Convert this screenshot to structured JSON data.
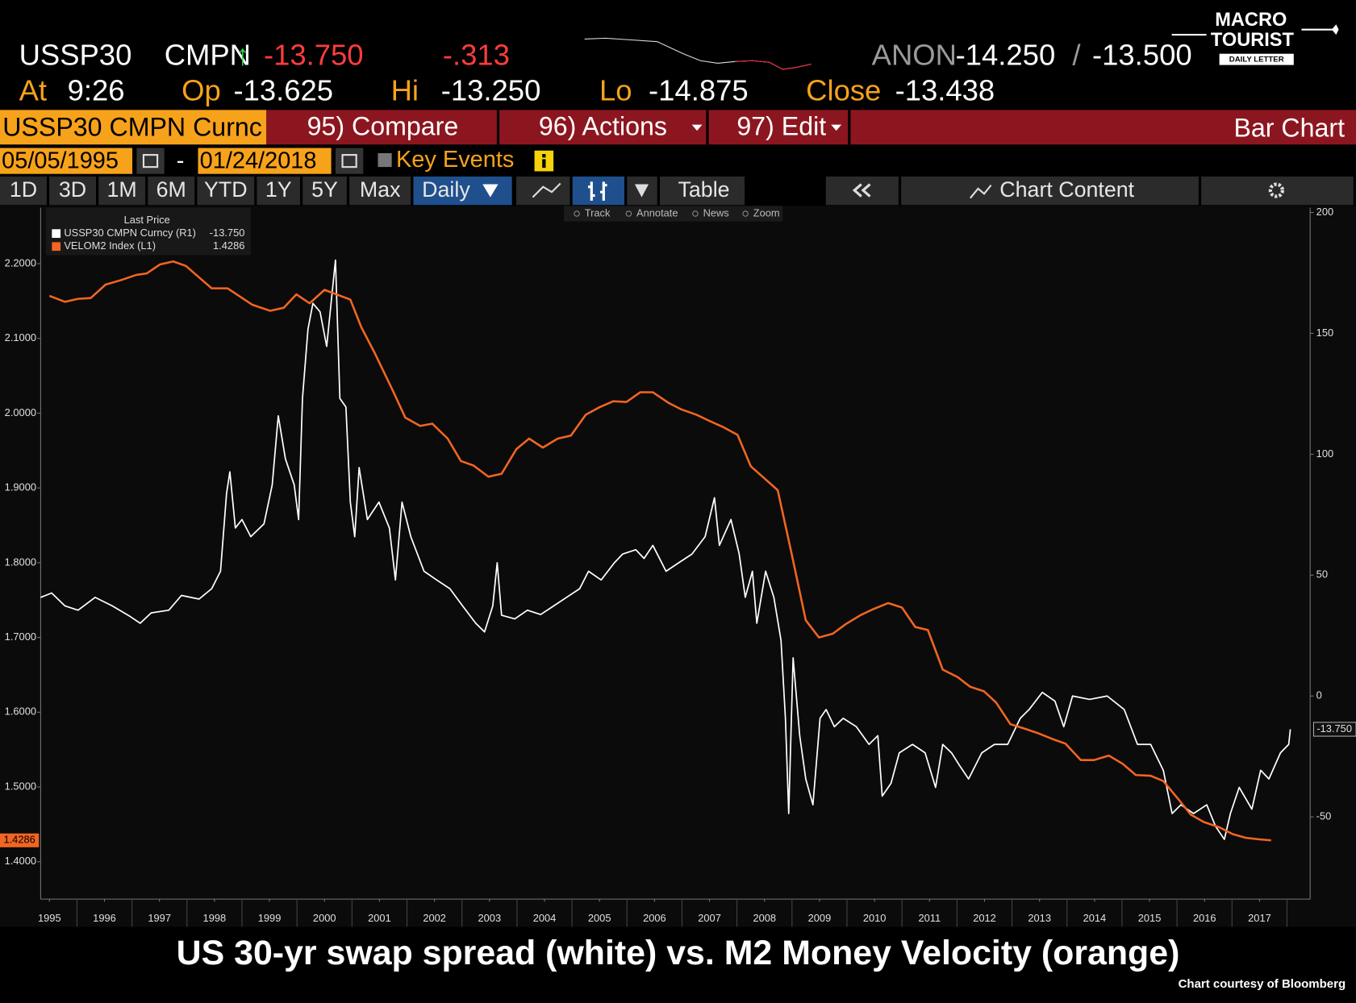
{
  "header": {
    "ticker": "USSP30",
    "source": "CMPN",
    "arrow": "↑",
    "last": "-13.750",
    "change": "-.313",
    "quote_source": "ANON",
    "bid": "-14.250",
    "sep": "/",
    "ask": "-13.500",
    "time_label": "At",
    "time": "9:26",
    "open_label": "Op",
    "open": "-13.625",
    "high_label": "Hi",
    "high": "-13.250",
    "low_label": "Lo",
    "low": "-14.875",
    "close_label": "Close",
    "close": "-13.438"
  },
  "logo": {
    "line1": "MACRO",
    "line2": "TOURIST",
    "line3": "DAILY LETTER"
  },
  "toolbar": {
    "security": "USSP30 CMPN Curnc",
    "compare": "95) Compare",
    "actions": "96) Actions",
    "edit": "97) Edit",
    "chart_type": "Bar Chart",
    "start_date": "05/05/1995",
    "date_sep": "-",
    "end_date": "01/24/2018",
    "key_events": "Key Events",
    "periods": [
      "1D",
      "3D",
      "1M",
      "6M",
      "YTD",
      "1Y",
      "5Y",
      "Max"
    ],
    "frequency": "Daily",
    "table": "Table",
    "chart_content": "Chart Content",
    "tools": [
      "Track",
      "Annotate",
      "News",
      "Zoom"
    ]
  },
  "chart_data": {
    "type": "line",
    "title": "US 30-yr swap spread (white) vs. M2 Money Velocity (orange)",
    "credit": "Chart courtesy of Bloomberg",
    "legend_title": "Last Price",
    "series": [
      {
        "name": "USSP30 CMPN Curncy  (R1)",
        "last_label": "-13.750",
        "color": "#ffffff",
        "axis": "y2",
        "x": [
          1995.34,
          1995.54,
          1995.78,
          1996.02,
          1996.33,
          1996.64,
          1996.96,
          1997.15,
          1997.35,
          1997.67,
          1997.9,
          1998.22,
          1998.45,
          1998.61,
          1998.72,
          1998.78,
          1998.88,
          1999.0,
          1999.16,
          1999.4,
          1999.55,
          1999.66,
          1999.79,
          1999.95,
          2000.03,
          2000.1,
          2000.2,
          2000.29,
          2000.42,
          2000.54,
          2000.7,
          2000.78,
          2000.89,
          2000.97,
          2001.05,
          2001.13,
          2001.28,
          2001.49,
          2001.68,
          2001.79,
          2001.91,
          2002.07,
          2002.31,
          2002.54,
          2002.78,
          2003.01,
          2003.25,
          2003.41,
          2003.56,
          2003.64,
          2003.72,
          2003.96,
          2004.19,
          2004.43,
          2004.67,
          2004.9,
          2005.14,
          2005.3,
          2005.53,
          2005.77,
          2005.92,
          2006.16,
          2006.31,
          2006.47,
          2006.71,
          2006.94,
          2007.18,
          2007.42,
          2007.59,
          2007.68,
          2007.89,
          2008.04,
          2008.15,
          2008.28,
          2008.36,
          2008.52,
          2008.67,
          2008.8,
          2008.88,
          2008.94,
          2009.02,
          2009.14,
          2009.25,
          2009.38,
          2009.51,
          2009.62,
          2009.77,
          2009.93,
          2010.17,
          2010.4,
          2010.56,
          2010.64,
          2010.8,
          2010.95,
          2011.19,
          2011.42,
          2011.61,
          2011.74,
          2011.9,
          2012.05,
          2012.21,
          2012.45,
          2012.68,
          2012.92,
          2013.15,
          2013.31,
          2013.55,
          2013.78,
          2013.94,
          2014.1,
          2014.41,
          2014.73,
          2015.04,
          2015.28,
          2015.52,
          2015.75,
          2015.91,
          2016.07,
          2016.3,
          2016.54,
          2016.7,
          2016.86,
          2016.97,
          2017.13,
          2017.36,
          2017.52,
          2017.67,
          2017.88,
          2018.03,
          2018.06
        ],
        "values": [
          40.8,
          42.6,
          37.3,
          35.5,
          40.8,
          37.3,
          33.0,
          30.1,
          34.4,
          35.5,
          41.6,
          40.1,
          44.4,
          51.6,
          83.8,
          92.7,
          69.5,
          73.0,
          65.9,
          71.2,
          87.3,
          115.9,
          98.1,
          87.3,
          73.0,
          123.1,
          151.7,
          162.4,
          158.9,
          144.6,
          180.3,
          123.1,
          119.5,
          80.2,
          65.9,
          94.5,
          73.0,
          80.2,
          69.5,
          48.0,
          80.2,
          65.9,
          51.6,
          48.0,
          44.4,
          37.3,
          30.1,
          26.5,
          37.3,
          55.1,
          33.4,
          31.9,
          35.5,
          33.7,
          37.3,
          40.8,
          44.4,
          51.6,
          48.0,
          55.1,
          58.7,
          60.5,
          56.9,
          62.3,
          51.6,
          55.1,
          58.7,
          65.9,
          82.0,
          62.3,
          73.0,
          58.7,
          40.8,
          51.6,
          30.1,
          51.6,
          40.8,
          23.0,
          -9.2,
          -48.6,
          15.8,
          -16.4,
          -34.3,
          -45.0,
          -9.2,
          -5.6,
          -12.7,
          -9.2,
          -12.7,
          -20.0,
          -16.4,
          -41.4,
          -36.1,
          -23.5,
          -20.0,
          -23.5,
          -37.8,
          -20.0,
          -23.5,
          -28.9,
          -34.3,
          -23.5,
          -20.0,
          -20.0,
          -9.2,
          -5.6,
          1.5,
          -2.1,
          -12.7,
          0.0,
          -1.4,
          0.0,
          -5.6,
          -20.0,
          -20.0,
          -30.7,
          -48.6,
          -45.0,
          -48.6,
          -45.0,
          -53.9,
          -59.3,
          -48.6,
          -37.8,
          -46.8,
          -30.7,
          -34.3,
          -23.5,
          -20.0,
          -13.75
        ]
      },
      {
        "name": "VELOM2 Index  (L1)",
        "last_label": "1.4286",
        "color": "#f26522",
        "axis": "y",
        "x": [
          1995.5,
          1995.78,
          1996.02,
          1996.25,
          1996.52,
          1996.8,
          1997.08,
          1997.27,
          1997.51,
          1997.75,
          1997.98,
          1998.45,
          1998.74,
          1999.19,
          1999.51,
          1999.76,
          1999.99,
          2000.23,
          2000.5,
          2000.97,
          2001.17,
          2001.41,
          2001.75,
          2001.97,
          2002.24,
          2002.46,
          2002.74,
          2002.98,
          2003.21,
          2003.48,
          2003.72,
          2003.99,
          2004.22,
          2004.47,
          2004.74,
          2004.98,
          2005.25,
          2005.5,
          2005.75,
          2005.99,
          2006.24,
          2006.47,
          2006.75,
          2006.99,
          2007.26,
          2007.49,
          2007.76,
          2008.01,
          2008.25,
          2008.48,
          2008.74,
          2008.99,
          2009.25,
          2009.49,
          2009.74,
          2009.98,
          2010.25,
          2010.48,
          2010.75,
          2011.0,
          2011.24,
          2011.47,
          2011.74,
          2012.01,
          2012.24,
          2012.49,
          2012.71,
          2012.97,
          2013.23,
          2013.47,
          2013.74,
          2013.97,
          2014.25,
          2014.49,
          2014.76,
          2015.01,
          2015.25,
          2015.52,
          2015.75,
          2016.02,
          2016.25,
          2016.49,
          2016.77,
          2017.01,
          2017.25,
          2017.49,
          2017.71
        ],
        "values": [
          2.157,
          2.149,
          2.153,
          2.154,
          2.172,
          2.178,
          2.185,
          2.187,
          2.199,
          2.203,
          2.197,
          2.167,
          2.167,
          2.145,
          2.137,
          2.141,
          2.159,
          2.147,
          2.165,
          2.152,
          2.115,
          2.081,
          2.029,
          1.994,
          1.983,
          1.986,
          1.966,
          1.936,
          1.93,
          1.915,
          1.919,
          1.952,
          1.966,
          1.954,
          1.966,
          1.97,
          1.998,
          2.008,
          2.016,
          2.015,
          2.028,
          2.028,
          2.014,
          2.005,
          1.998,
          1.99,
          1.981,
          1.971,
          1.929,
          1.914,
          1.897,
          1.813,
          1.723,
          1.7,
          1.705,
          1.718,
          1.73,
          1.738,
          1.746,
          1.74,
          1.714,
          1.71,
          1.657,
          1.647,
          1.634,
          1.628,
          1.613,
          1.584,
          1.578,
          1.572,
          1.564,
          1.558,
          1.536,
          1.536,
          1.542,
          1.531,
          1.516,
          1.515,
          1.508,
          1.484,
          1.463,
          1.453,
          1.446,
          1.437,
          1.432,
          1.43,
          1.4286
        ]
      }
    ],
    "xlim": [
      1995.34,
      2018.42
    ],
    "xticks": [
      {
        "value": 1995.5,
        "label": "1995"
      },
      {
        "value": 1996.5,
        "label": "1996"
      },
      {
        "value": 1997.5,
        "label": "1997"
      },
      {
        "value": 1998.5,
        "label": "1998"
      },
      {
        "value": 1999.5,
        "label": "1999"
      },
      {
        "value": 2000.5,
        "label": "2000"
      },
      {
        "value": 2001.5,
        "label": "2001"
      },
      {
        "value": 2002.5,
        "label": "2002"
      },
      {
        "value": 2003.5,
        "label": "2003"
      },
      {
        "value": 2004.5,
        "label": "2004"
      },
      {
        "value": 2005.5,
        "label": "2005"
      },
      {
        "value": 2006.5,
        "label": "2006"
      },
      {
        "value": 2007.5,
        "label": "2007"
      },
      {
        "value": 2008.5,
        "label": "2008"
      },
      {
        "value": 2009.5,
        "label": "2009"
      },
      {
        "value": 2010.5,
        "label": "2010"
      },
      {
        "value": 2011.5,
        "label": "2011"
      },
      {
        "value": 2012.5,
        "label": "2012"
      },
      {
        "value": 2013.5,
        "label": "2013"
      },
      {
        "value": 2014.5,
        "label": "2014"
      },
      {
        "value": 2015.5,
        "label": "2015"
      },
      {
        "value": 2016.5,
        "label": "2016"
      },
      {
        "value": 2017.5,
        "label": "2017"
      }
    ],
    "ylim": [
      1.35,
      2.275
    ],
    "yticks": [
      {
        "value": 1.4,
        "label": "1.4000"
      },
      {
        "value": 1.5,
        "label": "1.5000"
      },
      {
        "value": 1.6,
        "label": "1.6000"
      },
      {
        "value": 1.7,
        "label": "1.7000"
      },
      {
        "value": 1.8,
        "label": "1.8000"
      },
      {
        "value": 1.9,
        "label": "1.9000"
      },
      {
        "value": 2.0,
        "label": "2.0000"
      },
      {
        "value": 2.1,
        "label": "2.1000"
      },
      {
        "value": 2.2,
        "label": "2.2000"
      }
    ],
    "y2lim": [
      -84,
      202
    ],
    "y2ticks": [
      -50,
      0,
      50,
      100,
      150,
      200
    ],
    "grid": false
  }
}
